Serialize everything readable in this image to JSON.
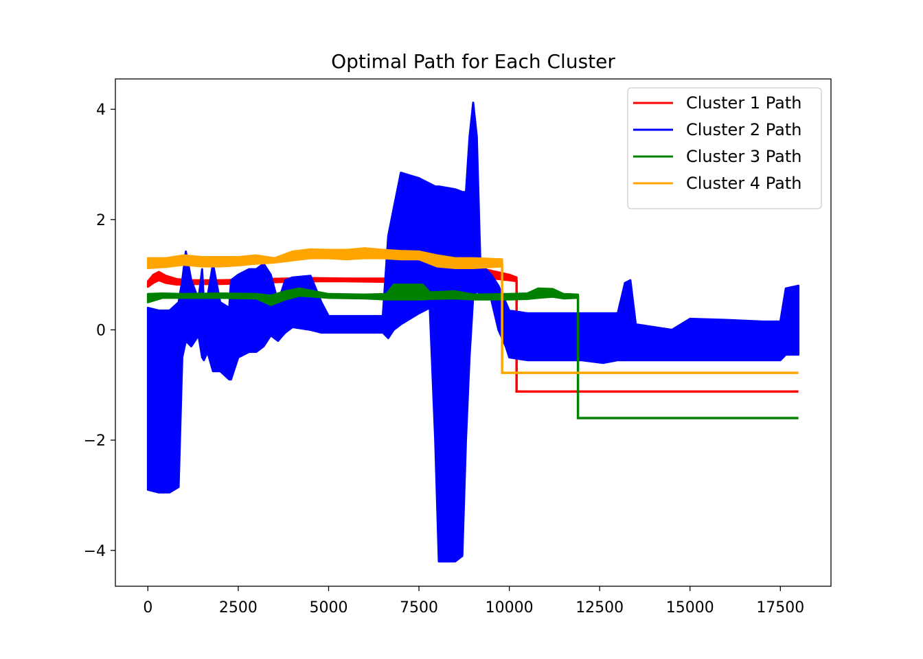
{
  "chart_data": {
    "type": "line",
    "title": "Optimal Path for Each Cluster",
    "xlabel": "",
    "ylabel": "",
    "xlim": [
      -900,
      18900
    ],
    "ylim": [
      -4.65,
      4.55
    ],
    "x_ticks": [
      0,
      2500,
      5000,
      7500,
      10000,
      12500,
      15000,
      17500
    ],
    "x_tick_labels": [
      "0",
      "2500",
      "5000",
      "7500",
      "10000",
      "12500",
      "15000",
      "17500"
    ],
    "y_ticks": [
      -4,
      -2,
      0,
      2,
      4
    ],
    "y_tick_labels": [
      "−4",
      "−2",
      "0",
      "2",
      "4"
    ],
    "grid": false,
    "legend_position": "top-right",
    "series": [
      {
        "name": "Cluster 1 Path",
        "color": "#ff0000",
        "style": "band",
        "band": [
          [
            0,
            0.78,
            0.88
          ],
          [
            150,
            0.85,
            1.0
          ],
          [
            300,
            0.9,
            1.05
          ],
          [
            500,
            0.85,
            0.98
          ],
          [
            800,
            0.82,
            0.92
          ],
          [
            1200,
            0.83,
            0.9
          ],
          [
            2000,
            0.83,
            0.9
          ],
          [
            3000,
            0.85,
            0.92
          ],
          [
            3800,
            0.87,
            0.93
          ],
          [
            4500,
            0.88,
            0.94
          ],
          [
            5500,
            0.88,
            0.93
          ],
          [
            6600,
            0.87,
            0.93
          ],
          [
            7500,
            0.9,
            1.0
          ],
          [
            8500,
            0.95,
            1.08
          ],
          [
            9300,
            0.95,
            1.1
          ],
          [
            10000,
            0.9,
            1.0
          ],
          [
            10200,
            0.88,
            0.95
          ]
        ],
        "tail": [
          [
            10200,
            0.9
          ],
          [
            10200,
            -1.12
          ],
          [
            18000,
            -1.12
          ]
        ]
      },
      {
        "name": "Cluster 2 Path",
        "color": "#0000ff",
        "style": "band",
        "band": [
          [
            0,
            -2.9,
            0.4
          ],
          [
            300,
            -2.95,
            0.35
          ],
          [
            600,
            -2.95,
            0.35
          ],
          [
            850,
            -2.85,
            0.5
          ],
          [
            950,
            -0.5,
            0.9
          ],
          [
            1050,
            -0.2,
            1.42
          ],
          [
            1200,
            -0.3,
            0.9
          ],
          [
            1400,
            -0.1,
            0.55
          ],
          [
            1500,
            -0.5,
            1.1
          ],
          [
            1550,
            -0.55,
            0.5
          ],
          [
            1650,
            -0.4,
            0.6
          ],
          [
            1800,
            -0.75,
            1.2
          ],
          [
            2000,
            -0.75,
            0.5
          ],
          [
            2250,
            -0.9,
            0.4
          ],
          [
            2300,
            -0.9,
            0.9
          ],
          [
            2500,
            -0.5,
            1.0
          ],
          [
            2800,
            -0.4,
            1.1
          ],
          [
            3000,
            -0.4,
            1.1
          ],
          [
            3200,
            -0.3,
            1.2
          ],
          [
            3400,
            -0.1,
            1.0
          ],
          [
            3600,
            -0.2,
            0.5
          ],
          [
            3800,
            -0.05,
            0.9
          ],
          [
            4000,
            0.05,
            0.95
          ],
          [
            4500,
            0.0,
            0.98
          ],
          [
            4800,
            -0.05,
            0.5
          ],
          [
            5000,
            -0.05,
            0.25
          ],
          [
            6000,
            -0.05,
            0.25
          ],
          [
            6500,
            -0.05,
            0.25
          ],
          [
            6650,
            -0.15,
            1.7
          ],
          [
            6800,
            0.0,
            2.2
          ],
          [
            7000,
            0.1,
            2.85
          ],
          [
            7500,
            0.3,
            2.75
          ],
          [
            7800,
            0.4,
            2.65
          ],
          [
            7950,
            -2.0,
            2.6
          ],
          [
            8050,
            -4.2,
            2.6
          ],
          [
            8500,
            -4.2,
            2.55
          ],
          [
            8700,
            -4.1,
            2.5
          ],
          [
            8800,
            -2.0,
            2.5
          ],
          [
            8900,
            -0.5,
            3.5
          ],
          [
            9000,
            0.6,
            4.12
          ],
          [
            9100,
            0.7,
            3.5
          ],
          [
            9200,
            0.65,
            1.2
          ],
          [
            9500,
            0.55,
            1.0
          ],
          [
            9700,
            0.0,
            0.8
          ],
          [
            9900,
            -0.3,
            0.5
          ],
          [
            10000,
            -0.5,
            0.35
          ],
          [
            10500,
            -0.55,
            0.3
          ],
          [
            11000,
            -0.55,
            0.3
          ],
          [
            12000,
            -0.55,
            0.3
          ],
          [
            12600,
            -0.6,
            0.3
          ],
          [
            13000,
            -0.55,
            0.3
          ],
          [
            13200,
            -0.55,
            0.85
          ],
          [
            13350,
            -0.55,
            0.9
          ],
          [
            13500,
            -0.55,
            0.1
          ],
          [
            14000,
            -0.55,
            0.05
          ],
          [
            14500,
            -0.55,
            0.0
          ],
          [
            15000,
            -0.55,
            0.2
          ],
          [
            16000,
            -0.55,
            0.18
          ],
          [
            17000,
            -0.55,
            0.15
          ],
          [
            17500,
            -0.55,
            0.15
          ],
          [
            17650,
            -0.45,
            0.75
          ],
          [
            18000,
            -0.45,
            0.8
          ]
        ],
        "tail": []
      },
      {
        "name": "Cluster 3 Path",
        "color": "#008000",
        "style": "band",
        "band": [
          [
            0,
            0.5,
            0.65
          ],
          [
            400,
            0.58,
            0.66
          ],
          [
            1000,
            0.58,
            0.65
          ],
          [
            2000,
            0.58,
            0.66
          ],
          [
            3000,
            0.57,
            0.65
          ],
          [
            3400,
            0.45,
            0.62
          ],
          [
            3800,
            0.55,
            0.7
          ],
          [
            4200,
            0.62,
            0.75
          ],
          [
            4600,
            0.6,
            0.7
          ],
          [
            5000,
            0.58,
            0.65
          ],
          [
            6000,
            0.57,
            0.64
          ],
          [
            6600,
            0.55,
            0.65
          ],
          [
            6800,
            0.55,
            0.82
          ],
          [
            7200,
            0.55,
            0.82
          ],
          [
            7600,
            0.55,
            0.82
          ],
          [
            7800,
            0.56,
            0.68
          ],
          [
            8500,
            0.57,
            0.7
          ],
          [
            9000,
            0.55,
            0.64
          ],
          [
            10000,
            0.55,
            0.65
          ],
          [
            10500,
            0.56,
            0.66
          ],
          [
            10800,
            0.58,
            0.75
          ],
          [
            11200,
            0.6,
            0.74
          ],
          [
            11500,
            0.57,
            0.65
          ],
          [
            11900,
            0.58,
            0.64
          ]
        ],
        "tail": [
          [
            11900,
            0.62
          ],
          [
            11900,
            -1.6
          ],
          [
            18000,
            -1.6
          ]
        ]
      },
      {
        "name": "Cluster 4 Path",
        "color": "#ffa500",
        "style": "band",
        "band": [
          [
            0,
            1.12,
            1.3
          ],
          [
            500,
            1.14,
            1.3
          ],
          [
            1000,
            1.18,
            1.35
          ],
          [
            1500,
            1.15,
            1.32
          ],
          [
            2000,
            1.15,
            1.32
          ],
          [
            2500,
            1.17,
            1.32
          ],
          [
            3000,
            1.2,
            1.35
          ],
          [
            3500,
            1.22,
            1.3
          ],
          [
            4000,
            1.26,
            1.42
          ],
          [
            4500,
            1.3,
            1.46
          ],
          [
            5000,
            1.3,
            1.45
          ],
          [
            5500,
            1.28,
            1.45
          ],
          [
            6000,
            1.3,
            1.48
          ],
          [
            6500,
            1.3,
            1.45
          ],
          [
            7000,
            1.28,
            1.43
          ],
          [
            7500,
            1.28,
            1.42
          ],
          [
            8000,
            1.15,
            1.35
          ],
          [
            8500,
            1.12,
            1.3
          ],
          [
            9000,
            1.12,
            1.3
          ],
          [
            9800,
            1.15,
            1.28
          ]
        ],
        "tail": [
          [
            9800,
            1.2
          ],
          [
            9800,
            -0.78
          ],
          [
            18000,
            -0.78
          ]
        ]
      }
    ]
  }
}
